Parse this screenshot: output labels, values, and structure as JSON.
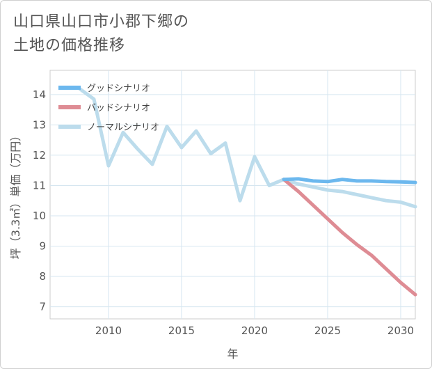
{
  "page": {
    "title_line1": "山口県山口市小郡下郷の",
    "title_line2": "土地の価格推移"
  },
  "chart_data": {
    "type": "line",
    "title": "山口県山口市小郡下郷の土地の価格推移",
    "xlabel": "年",
    "ylabel": "坪（3.3㎡）単価（万円）",
    "xlim": [
      2006,
      2031
    ],
    "ylim": [
      6.6,
      14.8
    ],
    "xticks": [
      2010,
      2015,
      2020,
      2025,
      2030
    ],
    "yticks": [
      7,
      8,
      9,
      10,
      11,
      12,
      13,
      14
    ],
    "grid": true,
    "legend_position": "top-left",
    "series": [
      {
        "name": "グッドシナリオ",
        "color": "#6cb8ee",
        "x": [
          2022,
          2023,
          2024,
          2025,
          2026,
          2027,
          2028,
          2029,
          2030,
          2031
        ],
        "y": [
          11.2,
          11.22,
          11.15,
          11.13,
          11.2,
          11.15,
          11.15,
          11.13,
          11.12,
          11.1
        ]
      },
      {
        "name": "バッドシナリオ",
        "color": "#de8c94",
        "x": [
          2022,
          2023,
          2024,
          2025,
          2026,
          2027,
          2028,
          2029,
          2030,
          2031
        ],
        "y": [
          11.2,
          10.8,
          10.35,
          9.9,
          9.45,
          9.05,
          8.7,
          8.25,
          7.8,
          7.4
        ]
      },
      {
        "name": "ノーマルシナリオ",
        "color": "#bcdcec",
        "x": [
          2008,
          2009,
          2010,
          2011,
          2012,
          2013,
          2014,
          2015,
          2016,
          2017,
          2018,
          2019,
          2020,
          2021,
          2022,
          2023,
          2024,
          2025,
          2026,
          2027,
          2028,
          2029,
          2030,
          2031
        ],
        "y": [
          14.2,
          13.85,
          11.65,
          12.75,
          12.2,
          11.7,
          12.95,
          12.25,
          12.8,
          12.05,
          12.4,
          10.5,
          11.95,
          11.0,
          11.2,
          11.05,
          10.95,
          10.85,
          10.8,
          10.7,
          10.6,
          10.5,
          10.45,
          10.3
        ]
      }
    ]
  }
}
